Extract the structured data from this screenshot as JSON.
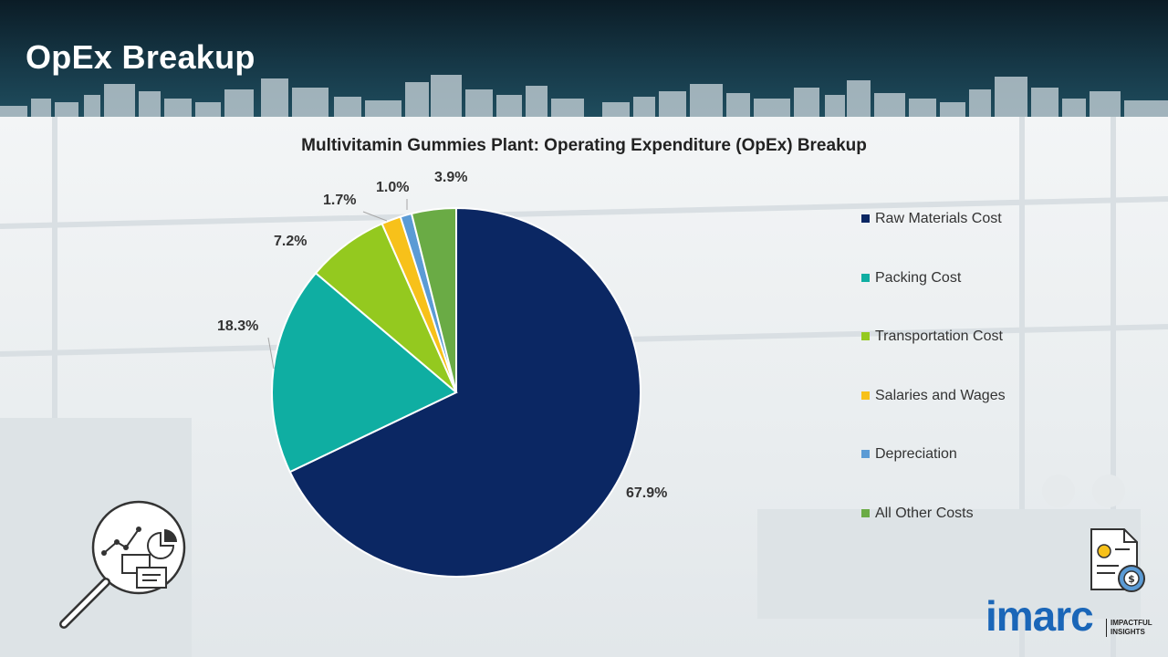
{
  "page": {
    "title": "OpEx Breakup"
  },
  "chart_data": {
    "type": "pie",
    "title": "Multivitamin Gummies Plant: Operating Expenditure (OpEx) Breakup",
    "unit": "%",
    "legend_position": "right",
    "slices": [
      {
        "name": "Raw Materials Cost",
        "value": 67.9,
        "label": "67.9%",
        "color": "#0b2763"
      },
      {
        "name": "Packing Cost",
        "value": 18.3,
        "label": "18.3%",
        "color": "#0faea2"
      },
      {
        "name": "Transportation Cost",
        "value": 7.2,
        "label": "7.2%",
        "color": "#94c91f"
      },
      {
        "name": "Salaries and Wages",
        "value": 1.7,
        "label": "1.7%",
        "color": "#f7c11a"
      },
      {
        "name": "Depreciation",
        "value": 1.0,
        "label": "1.0%",
        "color": "#5b9bd5"
      },
      {
        "name": "All Other Costs",
        "value": 3.9,
        "label": "3.9%",
        "color": "#6aab45"
      }
    ]
  },
  "decor": {
    "analytics_icon": "magnifier-chart-icon",
    "invoice_icon": "invoice-dollar-gear-icon"
  },
  "logo": {
    "wordmark": "imarc",
    "tagline_1": "IMPACTFUL",
    "tagline_2": "INSIGHTS"
  }
}
